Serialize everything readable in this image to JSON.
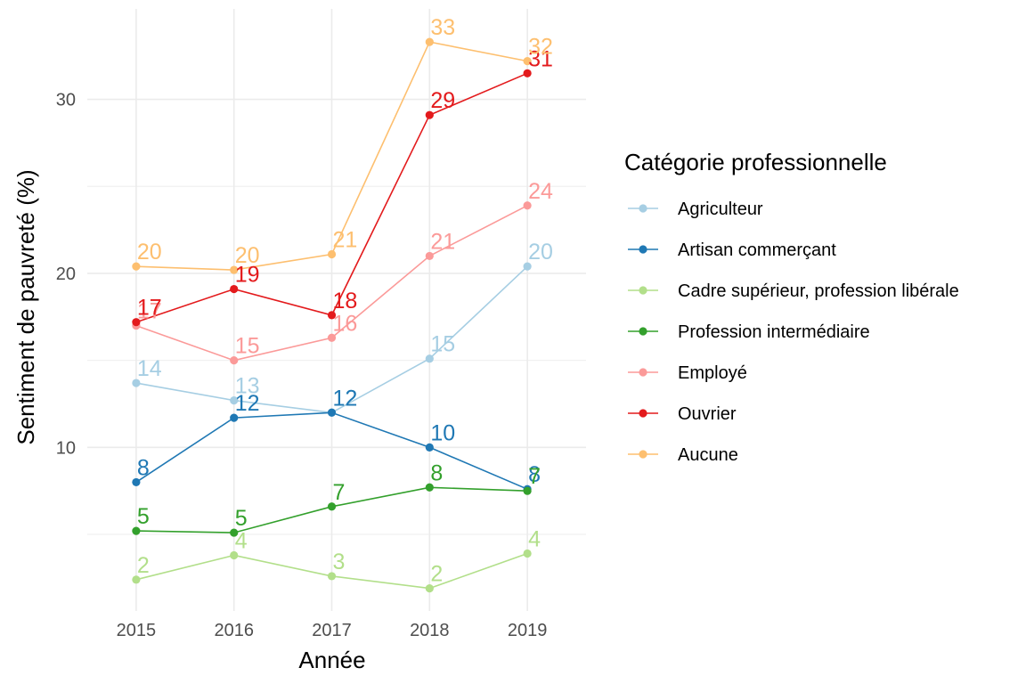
{
  "chart_data": {
    "type": "line",
    "title": "",
    "xlabel": "Année",
    "ylabel": "Sentiment de pauvreté (%)",
    "x": [
      2015,
      2016,
      2017,
      2018,
      2019
    ],
    "x_tick_labels": [
      "2015",
      "2016",
      "2017",
      "2018",
      "2019"
    ],
    "xlim": [
      2014.5,
      2019.6
    ],
    "ylim": [
      0.6,
      35.2
    ],
    "y_ticks": [
      10,
      20,
      30
    ],
    "y_tick_labels": [
      "10",
      "20",
      "30"
    ],
    "y_minor_ticks": [
      5,
      15,
      25
    ],
    "grid": true,
    "legend_title": "Catégorie professionnelle",
    "legend_position": "right",
    "series": [
      {
        "name": "Agriculteur",
        "color": "#a6cee3",
        "values": [
          13.7,
          12.7,
          12.0,
          15.1,
          20.4
        ],
        "labels": [
          "14",
          "13",
          "12",
          "15",
          "20"
        ]
      },
      {
        "name": "Artisan commerçant",
        "color": "#1f78b4",
        "values": [
          8.0,
          11.7,
          12.0,
          10.0,
          7.6
        ],
        "labels": [
          "8",
          "12",
          "12",
          "10",
          "8"
        ]
      },
      {
        "name": "Cadre supérieur, profession libérale",
        "color": "#b2df8a",
        "values": [
          2.4,
          3.8,
          2.6,
          1.9,
          3.9
        ],
        "labels": [
          "2",
          "4",
          "3",
          "2",
          "4"
        ]
      },
      {
        "name": "Profession intermédiaire",
        "color": "#33a02c",
        "values": [
          5.2,
          5.1,
          6.6,
          7.7,
          7.5
        ],
        "labels": [
          "5",
          "5",
          "7",
          "8",
          "7"
        ]
      },
      {
        "name": "Employé",
        "color": "#fb9a99",
        "values": [
          17.0,
          15.0,
          16.3,
          21.0,
          23.9
        ],
        "labels": [
          "17",
          "15",
          "16",
          "21",
          "24"
        ]
      },
      {
        "name": "Ouvrier",
        "color": "#e31a1c",
        "values": [
          17.2,
          19.1,
          17.6,
          29.1,
          31.5
        ],
        "labels": [
          "17",
          "19",
          "18",
          "29",
          "31"
        ]
      },
      {
        "name": "Aucune",
        "color": "#fdbf6f",
        "values": [
          20.4,
          20.2,
          21.1,
          33.3,
          32.2
        ],
        "labels": [
          "20",
          "20",
          "21",
          "33",
          "32"
        ]
      }
    ]
  }
}
